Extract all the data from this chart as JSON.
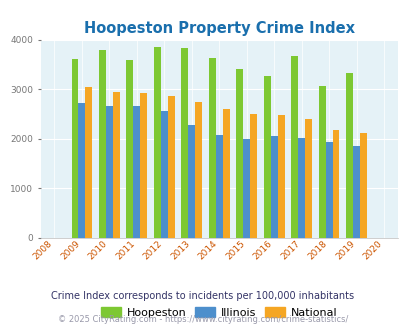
{
  "title": "Hoopeston Property Crime Index",
  "years": [
    2008,
    2009,
    2010,
    2011,
    2012,
    2013,
    2014,
    2015,
    2016,
    2017,
    2018,
    2019,
    2020
  ],
  "hoopeston": [
    null,
    3600,
    3780,
    3580,
    3850,
    3840,
    3630,
    3400,
    3260,
    3660,
    3070,
    3330,
    null
  ],
  "illinois": [
    null,
    2720,
    2660,
    2660,
    2560,
    2270,
    2080,
    2000,
    2060,
    2020,
    1940,
    1860,
    null
  ],
  "national": [
    null,
    3040,
    2950,
    2920,
    2870,
    2730,
    2600,
    2500,
    2470,
    2390,
    2180,
    2110,
    null
  ],
  "hoopeston_color": "#7dc832",
  "illinois_color": "#4d8fcc",
  "national_color": "#f5a623",
  "plot_bg": "#e5f2f7",
  "ylim": [
    0,
    4000
  ],
  "yticks": [
    0,
    1000,
    2000,
    3000,
    4000
  ],
  "bar_width": 0.25,
  "subtitle": "Crime Index corresponds to incidents per 100,000 inhabitants",
  "footer": "© 2025 CityRating.com - https://www.cityrating.com/crime-statistics/",
  "title_color": "#1a6fad",
  "subtitle_color": "#333366",
  "footer_color": "#9999aa",
  "xtick_color": "#cc5500",
  "ytick_color": "#777777"
}
